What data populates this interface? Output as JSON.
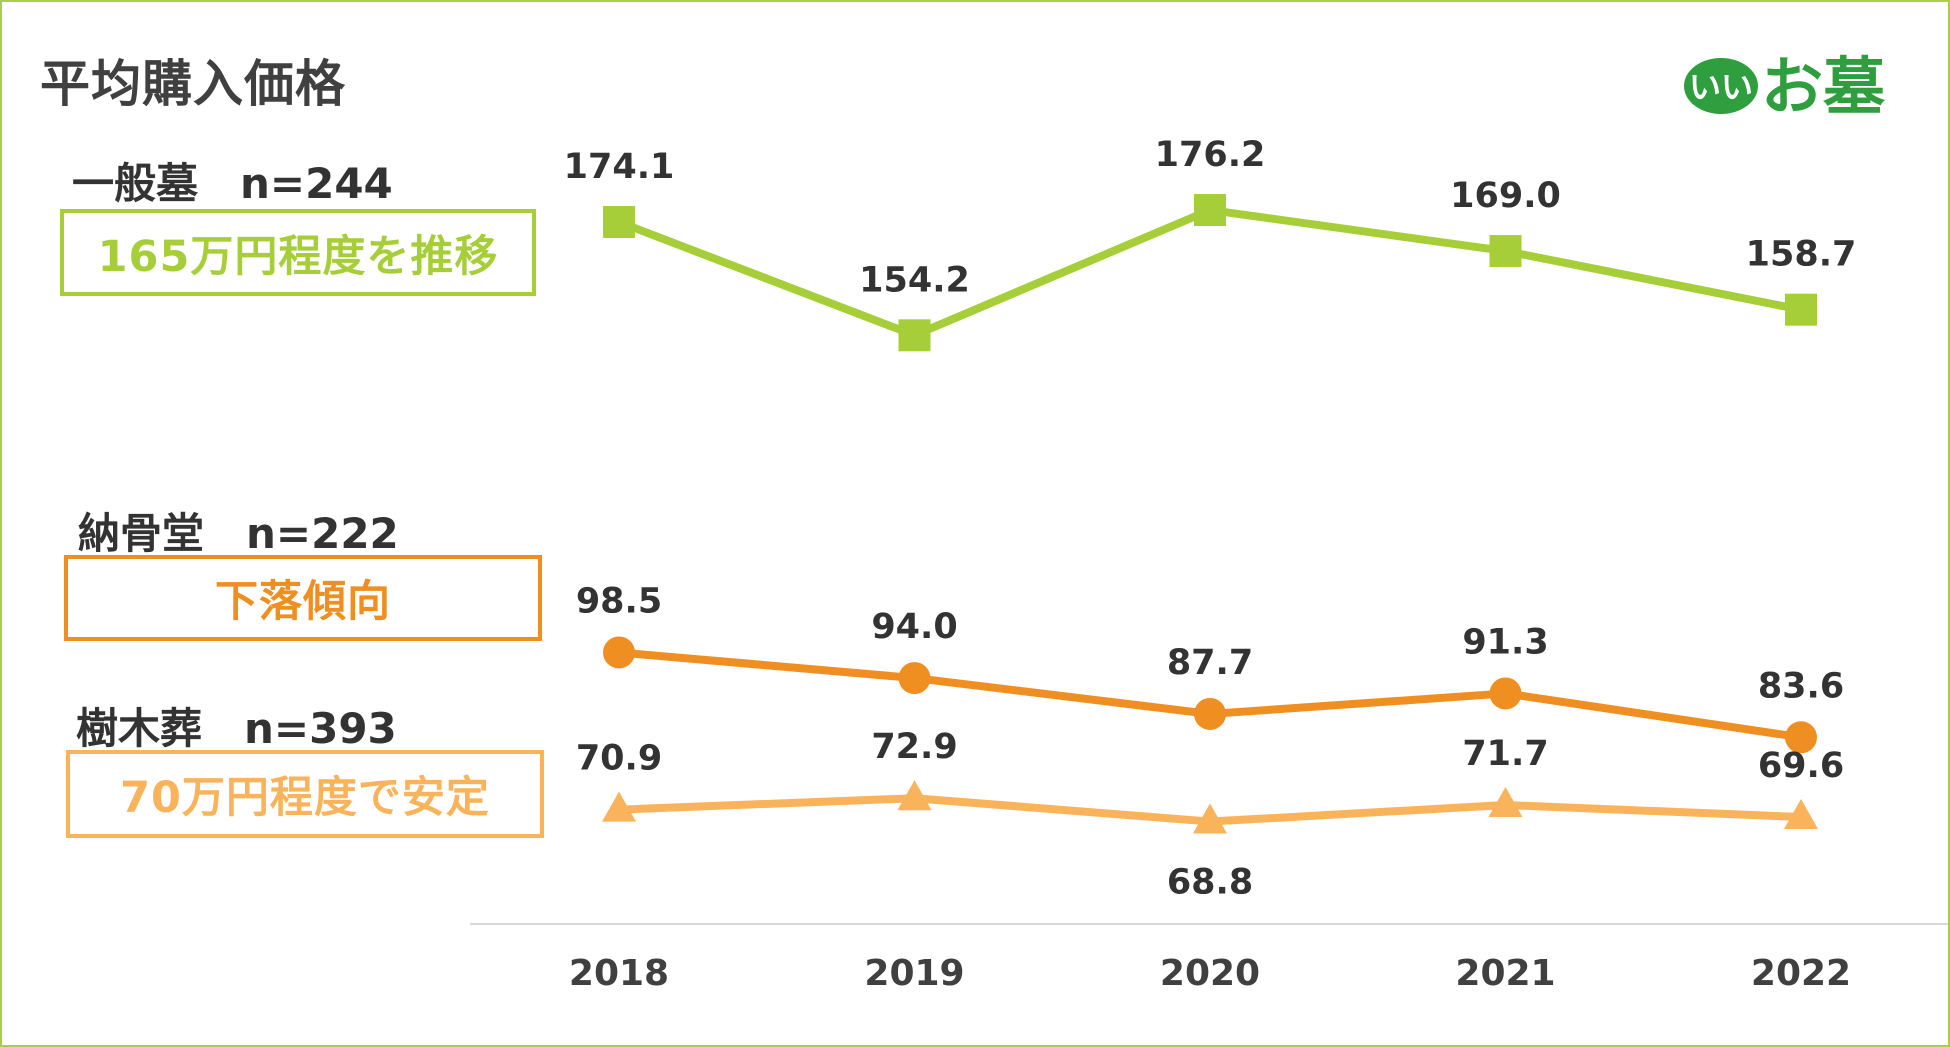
{
  "page": {
    "title": "平均購入価格"
  },
  "logo": {
    "badge_text": "いい",
    "brand_text": "お墓",
    "color": "#2e9e3e"
  },
  "colors": {
    "ippan": "#a6ce39",
    "nokotsudo": "#ef8f22",
    "jumokuso": "#f9b35b",
    "axis_text": "#404040",
    "label_text": "#333333"
  },
  "series_info": [
    {
      "key": "ippan",
      "label": "一般墓　n=244",
      "callout": "165万円程度を推移"
    },
    {
      "key": "nokotsudo",
      "label": "納骨堂　n=222",
      "callout": "下落傾向"
    },
    {
      "key": "jumokuso",
      "label": "樹木葬　n=393",
      "callout": "70万円程度で安定"
    }
  ],
  "chart_data": {
    "type": "line",
    "title": "平均購入価格",
    "xlabel": "",
    "ylabel": "",
    "categories": [
      "2018",
      "2019",
      "2020",
      "2021",
      "2022"
    ],
    "grid": false,
    "series": [
      {
        "name": "一般墓",
        "n": 244,
        "marker": "square",
        "values": [
          174.1,
          154.2,
          176.2,
          169.0,
          158.7
        ],
        "labels": [
          "174.1",
          "154.2",
          "176.2",
          "169.0",
          "158.7"
        ]
      },
      {
        "name": "納骨堂",
        "n": 222,
        "marker": "circle",
        "values": [
          98.5,
          94.0,
          87.7,
          91.3,
          83.6
        ],
        "labels": [
          "98.5",
          "94.0",
          "87.7",
          "91.3",
          "83.6"
        ]
      },
      {
        "name": "樹木葬",
        "n": 393,
        "marker": "triangle",
        "values": [
          70.9,
          72.9,
          68.8,
          71.7,
          69.6
        ],
        "labels": [
          "70.9",
          "72.9",
          "68.8",
          "71.7",
          "69.6"
        ]
      }
    ]
  }
}
